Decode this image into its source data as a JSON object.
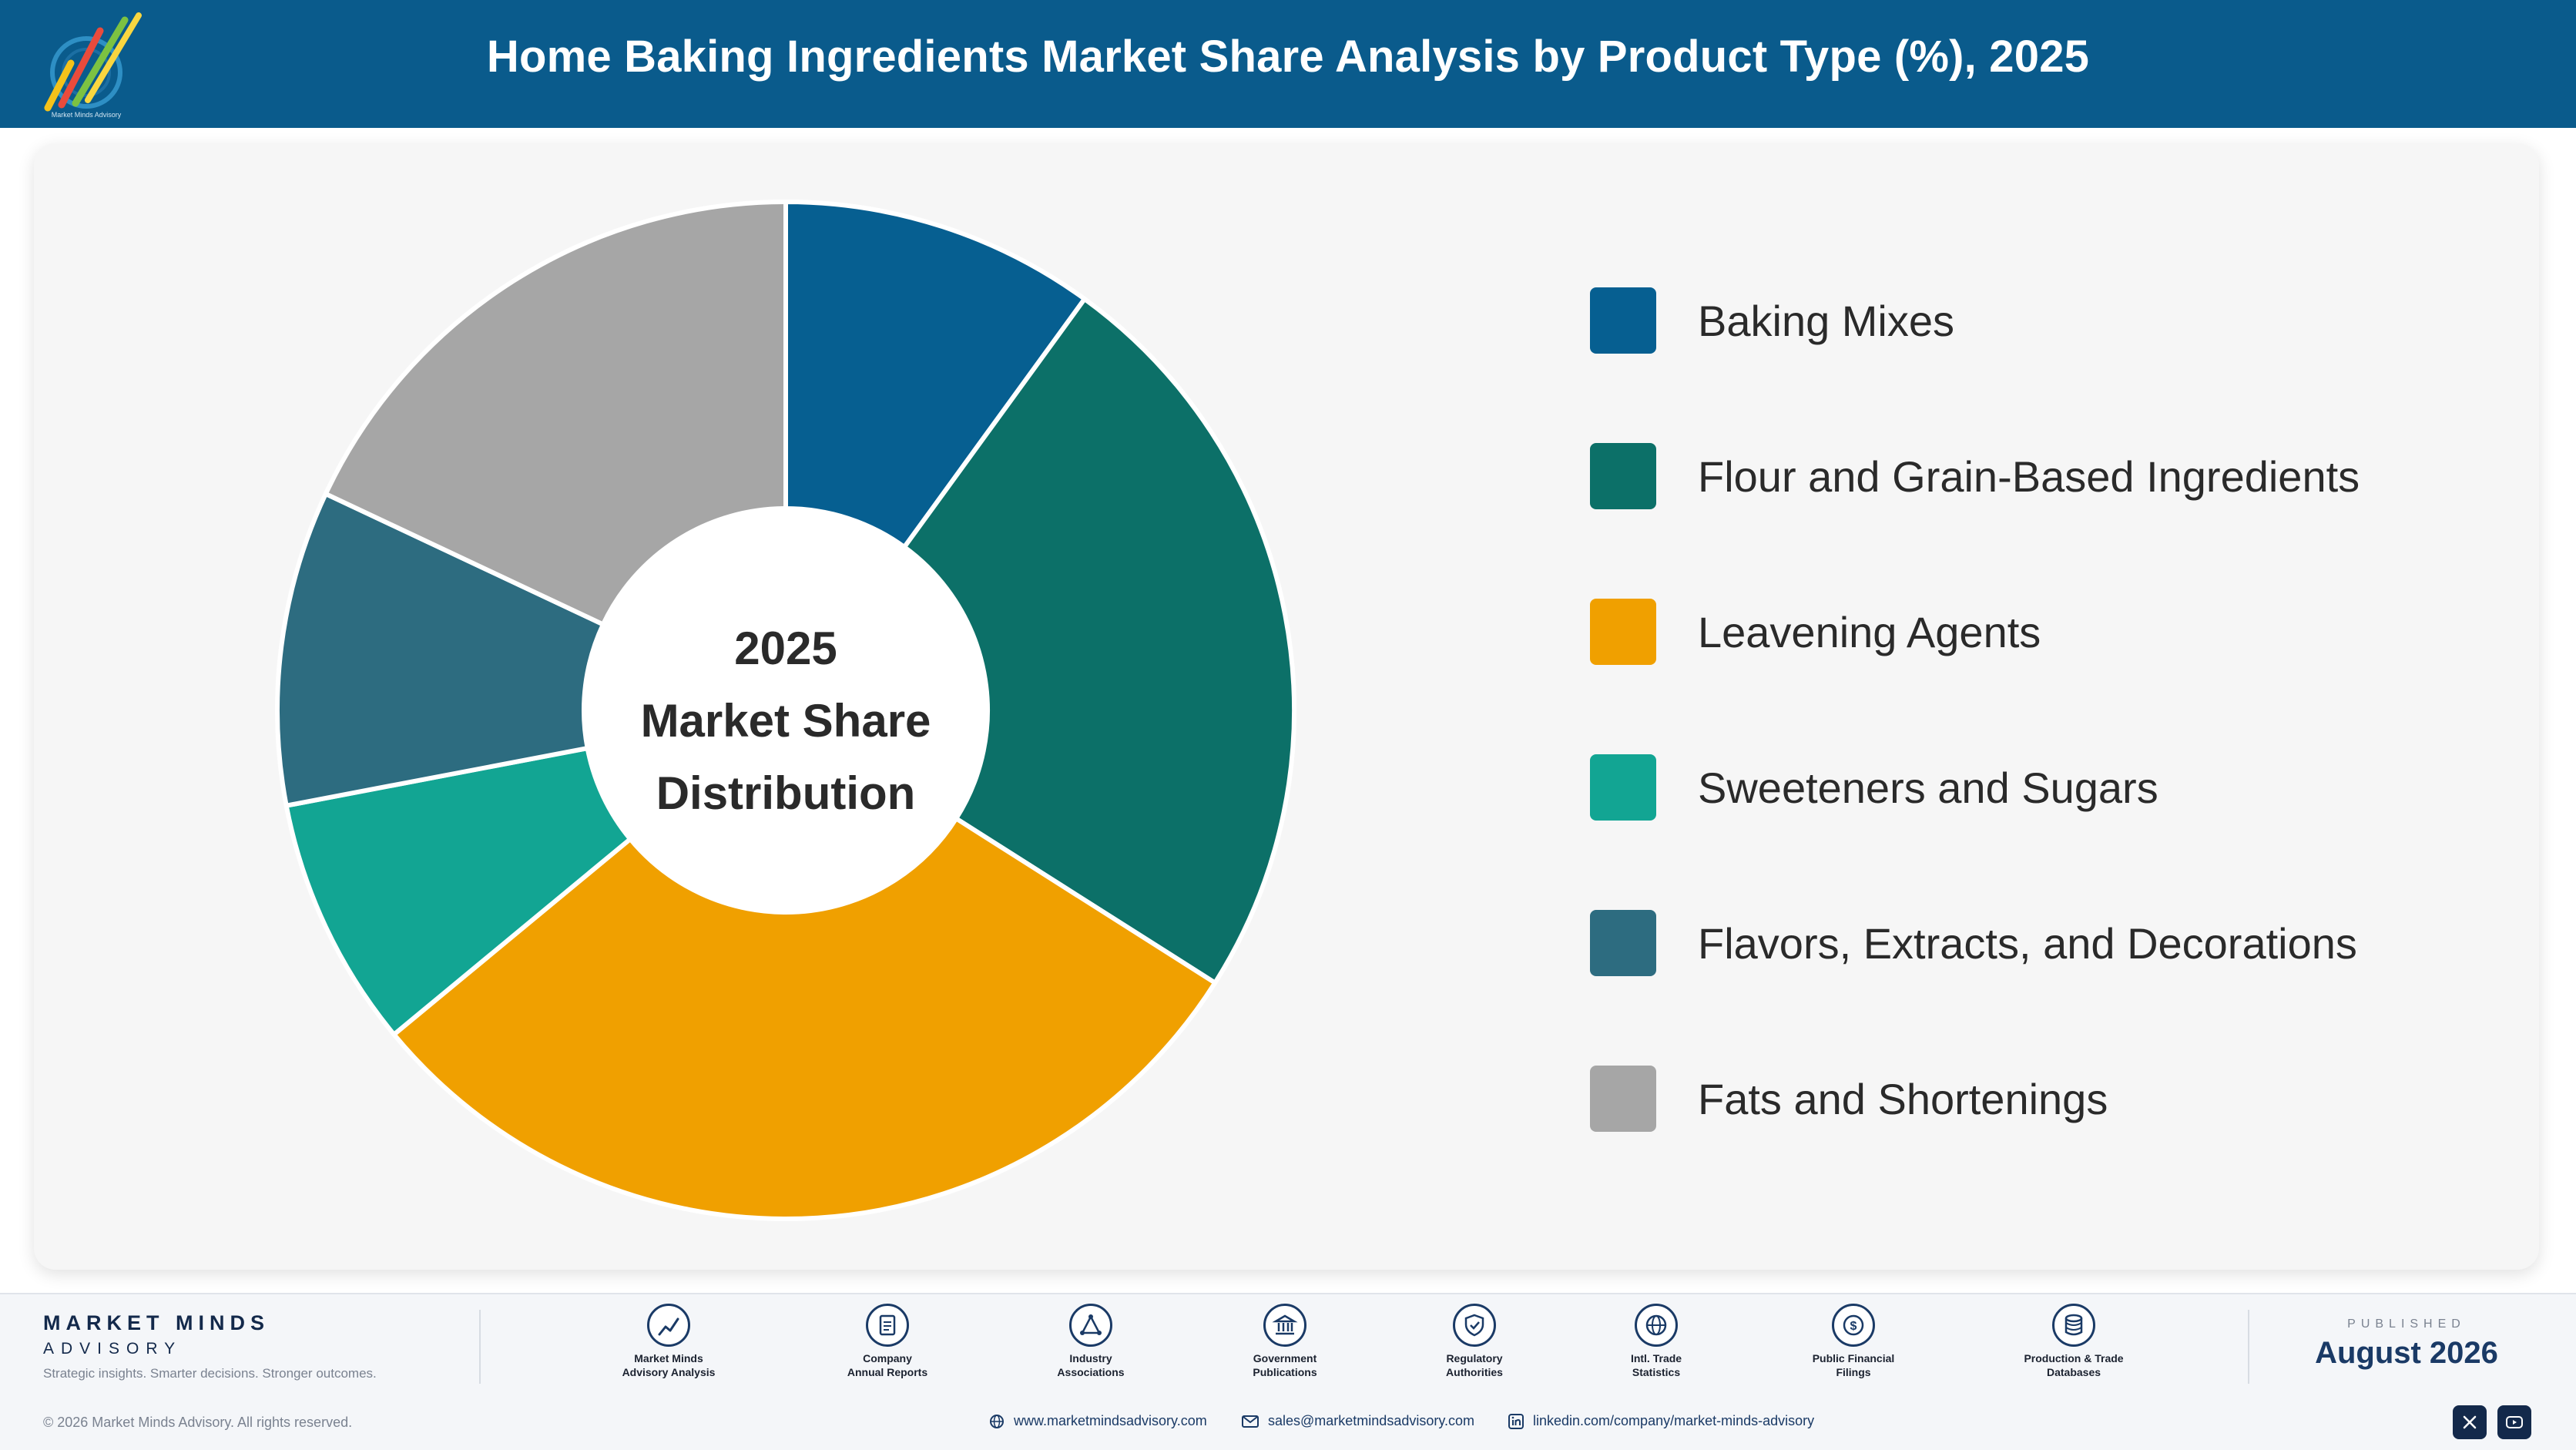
{
  "header": {
    "title": "Home Baking Ingredients Market Share Analysis by Product Type (%), 2025"
  },
  "colors": {
    "header_bg": "#0a5b8c",
    "card_bg": "#f6f6f6"
  },
  "chart_data": {
    "type": "pie",
    "style": "donut",
    "center_text": [
      "2025",
      "Market Share",
      "Distribution"
    ],
    "labels": [
      "Baking Mixes",
      "Flour and Grain-Based Ingredients",
      "Leavening Agents",
      "Sweeteners and Sugars",
      "Flavors, Extracts, and Decorations",
      "Fats and Shortenings"
    ],
    "values": [
      10,
      24,
      30,
      8,
      10,
      18
    ],
    "colors": [
      "#065f91",
      "#0c7068",
      "#f0a000",
      "#12a593",
      "#2d6c80",
      "#a6a6a6"
    ],
    "legend_position": "right"
  },
  "footer": {
    "brand_name": "MARKET MINDS",
    "brand_sub": "ADVISORY",
    "brand_tagline": "Strategic insights. Smarter decisions. Stronger outcomes.",
    "sources": [
      {
        "line1": "Market Minds",
        "line2": "Advisory Analysis",
        "icon": "trend-icon"
      },
      {
        "line1": "Company",
        "line2": "Annual Reports",
        "icon": "document-icon"
      },
      {
        "line1": "Industry",
        "line2": "Associations",
        "icon": "network-icon"
      },
      {
        "line1": "Government",
        "line2": "Publications",
        "icon": "bank-icon"
      },
      {
        "line1": "Regulatory",
        "line2": "Authorities",
        "icon": "shield-icon"
      },
      {
        "line1": "Intl. Trade",
        "line2": "Statistics",
        "icon": "globe-icon"
      },
      {
        "line1": "Public Financial",
        "line2": "Filings",
        "icon": "coin-icon"
      },
      {
        "line1": "Production & Trade",
        "line2": "Databases",
        "icon": "database-icon"
      }
    ],
    "published_label": "PUBLISHED",
    "published_date": "August 2026",
    "copyright": "© 2026 Market Minds Advisory. All rights reserved.",
    "website": "www.marketmindsadvisory.com",
    "email": "sales@marketmindsadvisory.com",
    "linkedin": "linkedin.com/company/market-minds-advisory"
  }
}
